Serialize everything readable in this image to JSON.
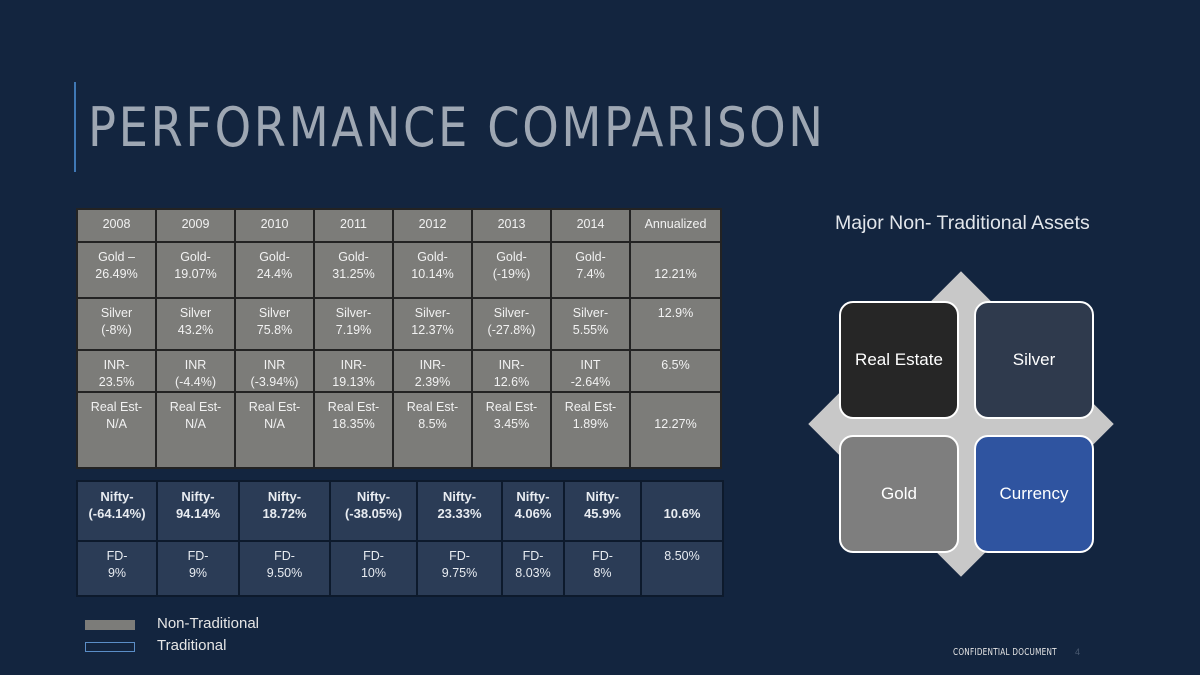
{
  "title": "PERFORMANCE COMPARISON",
  "non_traditional_table": {
    "headers": [
      "2008",
      "2009",
      "2010",
      "2011",
      "2012",
      "2013",
      "2014",
      "Annualized"
    ],
    "rows": [
      [
        "Gold –\n26.49%",
        "Gold-\n19.07%",
        "Gold-\n24.4%",
        "Gold-\n31.25%",
        "Gold-\n10.14%",
        "Gold-\n(-19%)",
        "Gold-\n7.4%",
        "\n12.21%"
      ],
      [
        "Silver\n(-8%)",
        "Silver\n43.2%",
        "Silver\n75.8%",
        "Silver-\n7.19%",
        "Silver-\n12.37%",
        "Silver-\n(-27.8%)",
        "Silver-\n5.55%",
        "12.9%"
      ],
      [
        "INR-\n23.5%",
        "INR\n(-4.4%)",
        "INR\n(-3.94%)",
        "INR-\n19.13%",
        "INR-\n2.39%",
        "INR-\n12.6%",
        "INT\n-2.64%",
        "6.5%"
      ],
      [
        "Real Est-\nN/A",
        "Real Est-\nN/A",
        "Real Est-\nN/A",
        "Real Est-\n18.35%",
        "Real Est-\n8.5%",
        "Real Est-\n3.45%",
        "Real Est-\n1.89%",
        "\n12.27%"
      ]
    ]
  },
  "traditional_table": {
    "rows": [
      [
        "Nifty-\n(-64.14%)",
        "Nifty-\n94.14%",
        "Nifty-\n18.72%",
        "Nifty-\n(-38.05%)",
        "Nifty-\n23.33%",
        "Nifty-\n4.06%",
        "Nifty-\n45.9%",
        "\n10.6%"
      ],
      [
        "FD-\n9%",
        "FD-\n9%",
        "FD-\n9.50%",
        "FD-\n10%",
        "FD-\n9.75%",
        "FD-\n8.03%",
        "FD-\n8%",
        "8.50%"
      ]
    ]
  },
  "legend": {
    "non_traditional": "Non-Traditional",
    "traditional": "Traditional"
  },
  "assets_section": {
    "title": "Major Non- Traditional Assets",
    "boxes": {
      "real_estate": "Real Estate",
      "silver": "Silver",
      "gold": "Gold",
      "currency": "Currency"
    }
  },
  "footer": {
    "confidential": "CONFIDENTIAL DOCUMENT",
    "page_number": "4"
  },
  "colors": {
    "background": "#13253f",
    "non_traditional_cell": "#7c7c79",
    "traditional_cell": "#2b3c56",
    "real_estate_box": "#262626",
    "silver_box": "#2f3a4d",
    "gold_box": "#7e7e7e",
    "currency_box": "#2f54a0"
  }
}
